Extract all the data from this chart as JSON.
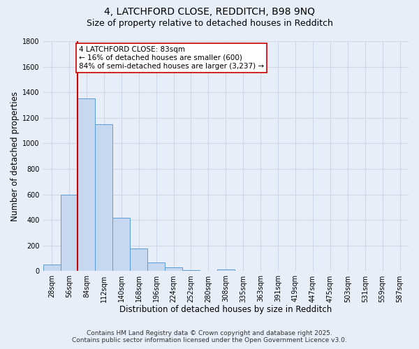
{
  "title_line1": "4, LATCHFORD CLOSE, REDDITCH, B98 9NQ",
  "title_line2": "Size of property relative to detached houses in Redditch",
  "xlabel": "Distribution of detached houses by size in Redditch",
  "ylabel": "Number of detached properties",
  "categories": [
    "28sqm",
    "56sqm",
    "84sqm",
    "112sqm",
    "140sqm",
    "168sqm",
    "196sqm",
    "224sqm",
    "252sqm",
    "280sqm",
    "308sqm",
    "335sqm",
    "363sqm",
    "391sqm",
    "419sqm",
    "447sqm",
    "475sqm",
    "503sqm",
    "531sqm",
    "559sqm",
    "587sqm"
  ],
  "values": [
    50,
    600,
    1350,
    1150,
    420,
    180,
    70,
    30,
    10,
    0,
    15,
    0,
    0,
    0,
    0,
    0,
    0,
    0,
    0,
    0,
    0
  ],
  "bar_color": "#c5d8ef",
  "bar_edge_color": "#5b9bd5",
  "vline_x_index": 2,
  "vline_color": "#cc0000",
  "annotation_text": "4 LATCHFORD CLOSE: 83sqm\n← 16% of detached houses are smaller (600)\n84% of semi-detached houses are larger (3,237) →",
  "annotation_box_color": "#ffffff",
  "annotation_box_edge_color": "#cc0000",
  "ylim": [
    0,
    1800
  ],
  "yticks": [
    0,
    200,
    400,
    600,
    800,
    1000,
    1200,
    1400,
    1600,
    1800
  ],
  "bg_color": "#e8eef7",
  "grid_color": "#d0d8e8",
  "footer_line1": "Contains HM Land Registry data © Crown copyright and database right 2025.",
  "footer_line2": "Contains public sector information licensed under the Open Government Licence v3.0.",
  "title_fontsize": 10,
  "subtitle_fontsize": 9,
  "axis_label_fontsize": 8.5,
  "tick_fontsize": 7,
  "annotation_fontsize": 7.5,
  "footer_fontsize": 6.5
}
